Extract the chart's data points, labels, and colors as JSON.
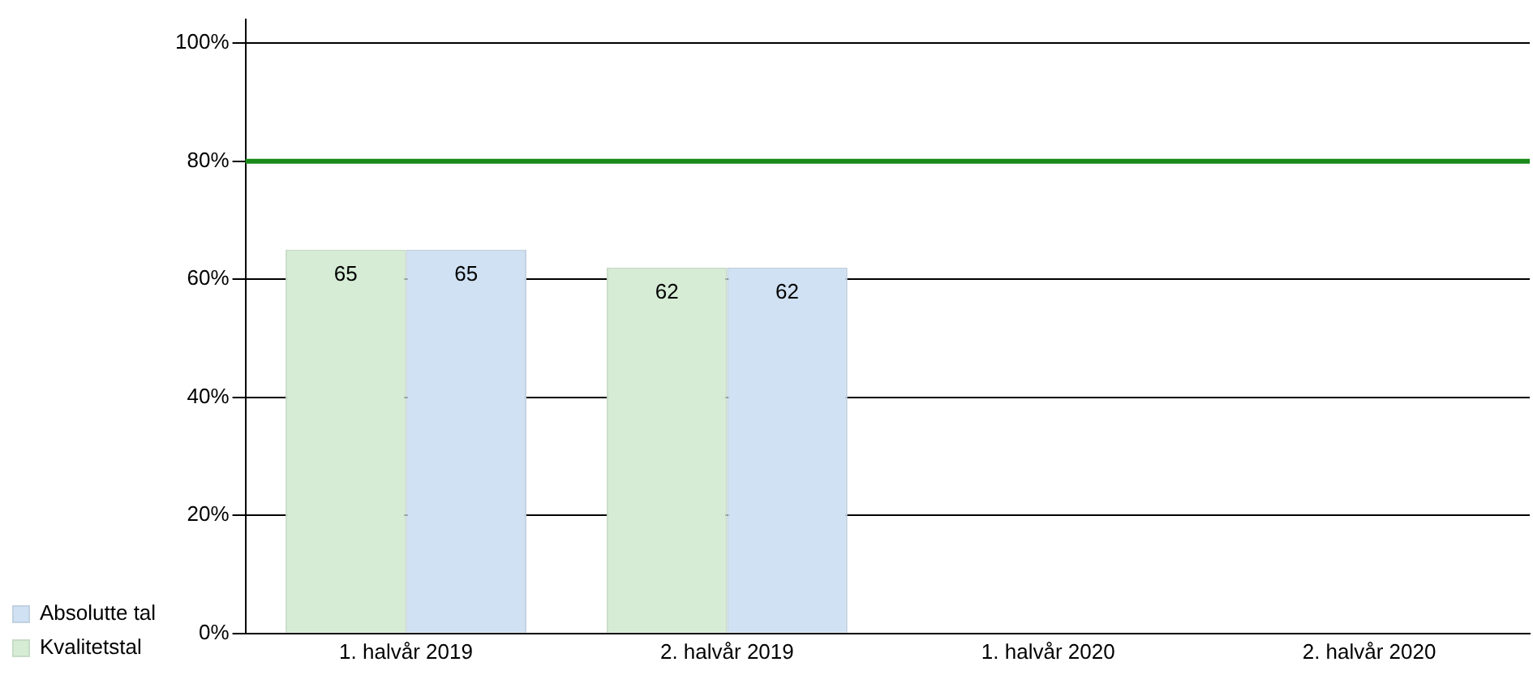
{
  "chart_data": {
    "type": "bar",
    "categories": [
      "1. halvår 2019",
      "2. halvår 2019",
      "1. halvår 2020",
      "2. halvår 2020"
    ],
    "series": [
      {
        "name": "Kvalitetstal",
        "color": "#d6ecd5",
        "values": [
          65,
          62,
          null,
          null
        ]
      },
      {
        "name": "Absolutte tal",
        "color": "#cfe1f2",
        "values": [
          65,
          62,
          null,
          null
        ]
      }
    ],
    "ylim": [
      0,
      104
    ],
    "yticks": [
      {
        "value": 0,
        "label": "0%"
      },
      {
        "value": 20,
        "label": "20%"
      },
      {
        "value": 40,
        "label": "40%"
      },
      {
        "value": 60,
        "label": "60%"
      },
      {
        "value": 80,
        "label": "80%"
      },
      {
        "value": 100,
        "label": "100%"
      }
    ],
    "ref_lines": [
      {
        "axis": "y",
        "value": 80,
        "label": null,
        "color": "#198a19"
      }
    ],
    "data_labels": true,
    "grid": "y",
    "legend": "bottom left"
  }
}
